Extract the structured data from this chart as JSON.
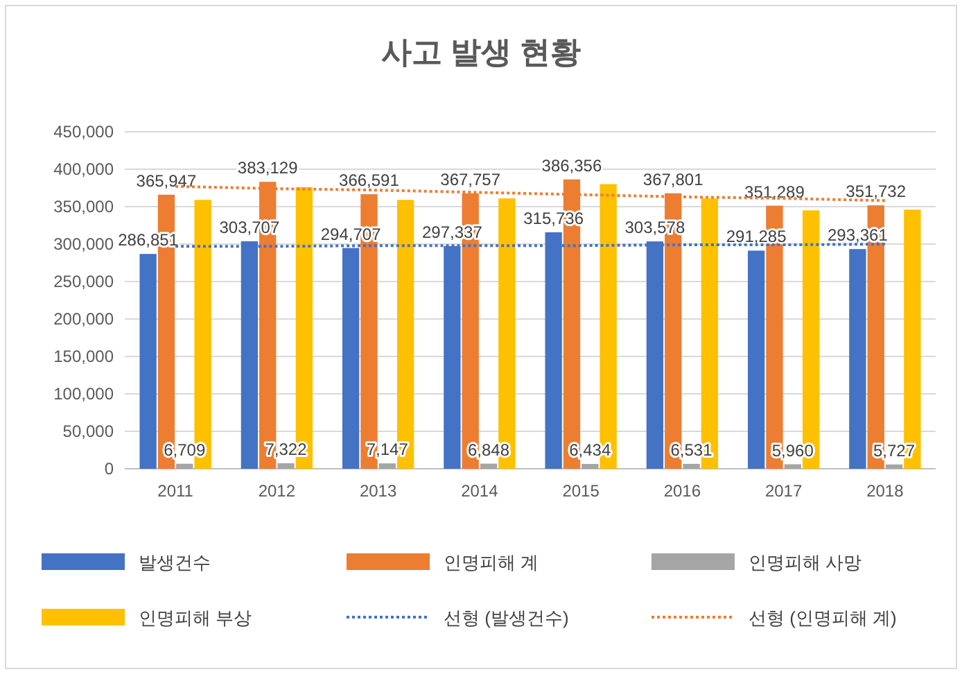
{
  "chart_data": {
    "type": "bar",
    "title": "사고 발생 현황",
    "categories": [
      "2011",
      "2012",
      "2013",
      "2014",
      "2015",
      "2016",
      "2017",
      "2018"
    ],
    "series": [
      {
        "name": "발생건수",
        "color": "#4472c4",
        "values": [
          286851,
          303707,
          294707,
          297337,
          315736,
          303578,
          291285,
          293361
        ],
        "value_labels": [
          "286,851",
          "303,707",
          "294,707",
          "297,337",
          "315,736",
          "303,578",
          "291,285",
          "293,361"
        ]
      },
      {
        "name": "인명피해 계",
        "color": "#ed7d31",
        "values": [
          365947,
          383129,
          366591,
          367757,
          386356,
          367801,
          351289,
          351732
        ],
        "value_labels": [
          "365,947",
          "383,129",
          "366,591",
          "367,757",
          "386,356",
          "367,801",
          "351,289",
          "351,732"
        ]
      },
      {
        "name": "인명피해 사망",
        "color": "#a5a5a5",
        "values": [
          6709,
          7322,
          7147,
          6848,
          6434,
          6531,
          5960,
          5727
        ],
        "value_labels": [
          "6,709",
          "7,322",
          "7,147",
          "6,848",
          "6,434",
          "6,531",
          "5,960",
          "5,727"
        ]
      },
      {
        "name": "인명피해 부상",
        "color": "#ffc000",
        "values": [
          359000,
          376000,
          359000,
          361000,
          380000,
          361000,
          345000,
          346000
        ]
      },
      {
        "name": "선형 (발생건수)",
        "type": "line",
        "line_style": "dotted",
        "color": "#4472c4",
        "values": [
          297000,
          297000,
          298000,
          298000,
          298000,
          299000,
          299000,
          300000
        ]
      },
      {
        "name": "선형 (인명피해 계)",
        "type": "line",
        "line_style": "dotted",
        "color": "#ed7d31",
        "values": [
          377000,
          374000,
          372000,
          369000,
          366000,
          363000,
          361000,
          358000
        ]
      }
    ],
    "ylim": [
      0,
      450000
    ],
    "yticks": [
      {
        "value": 0,
        "label": "0"
      },
      {
        "value": 50000,
        "label": "50,000"
      },
      {
        "value": 100000,
        "label": "100,000"
      },
      {
        "value": 150000,
        "label": "150,000"
      },
      {
        "value": 200000,
        "label": "200,000"
      },
      {
        "value": 250000,
        "label": "250,000"
      },
      {
        "value": 300000,
        "label": "300,000"
      },
      {
        "value": 350000,
        "label": "350,000"
      },
      {
        "value": 400000,
        "label": "400,000"
      },
      {
        "value": 450000,
        "label": "450,000"
      }
    ],
    "grid": "y",
    "legend": "bottom"
  }
}
